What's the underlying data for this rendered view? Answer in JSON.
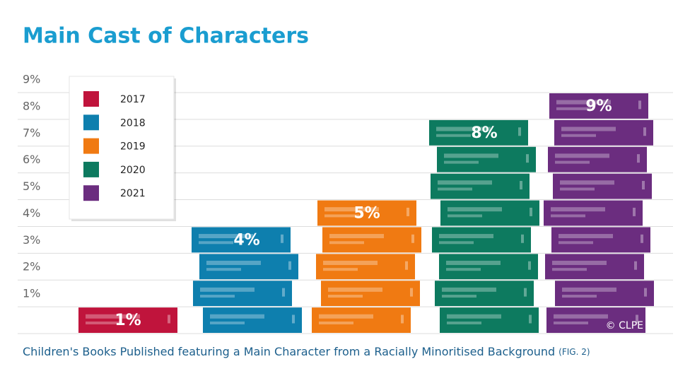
{
  "chart_data": {
    "type": "bar",
    "title": "Main Cast of Characters",
    "caption": "Children's Books Published featuring a Main Character from a Racially Minoritised Background",
    "caption_note": "(FIG. 2)",
    "credit": "© CLPE",
    "categories": [
      "2017",
      "2018",
      "2019",
      "2020",
      "2021"
    ],
    "values": [
      1,
      4,
      5,
      8,
      9
    ],
    "value_labels": [
      "1%",
      "4%",
      "5%",
      "8%",
      "9%"
    ],
    "colors": [
      "#c0143c",
      "#0e7fae",
      "#f07a12",
      "#0d7a5f",
      "#6b2d7f"
    ],
    "ylim": [
      0,
      9
    ],
    "yticks": [
      {
        "value": 1,
        "label": "1%"
      },
      {
        "value": 2,
        "label": "2%"
      },
      {
        "value": 3,
        "label": "3%"
      },
      {
        "value": 4,
        "label": "4%"
      },
      {
        "value": 5,
        "label": "5%"
      },
      {
        "value": 6,
        "label": "6%"
      },
      {
        "value": 7,
        "label": "7%"
      },
      {
        "value": 8,
        "label": "8%"
      },
      {
        "value": 9,
        "label": "9%"
      }
    ],
    "grid": true,
    "legend": "upper-left"
  }
}
